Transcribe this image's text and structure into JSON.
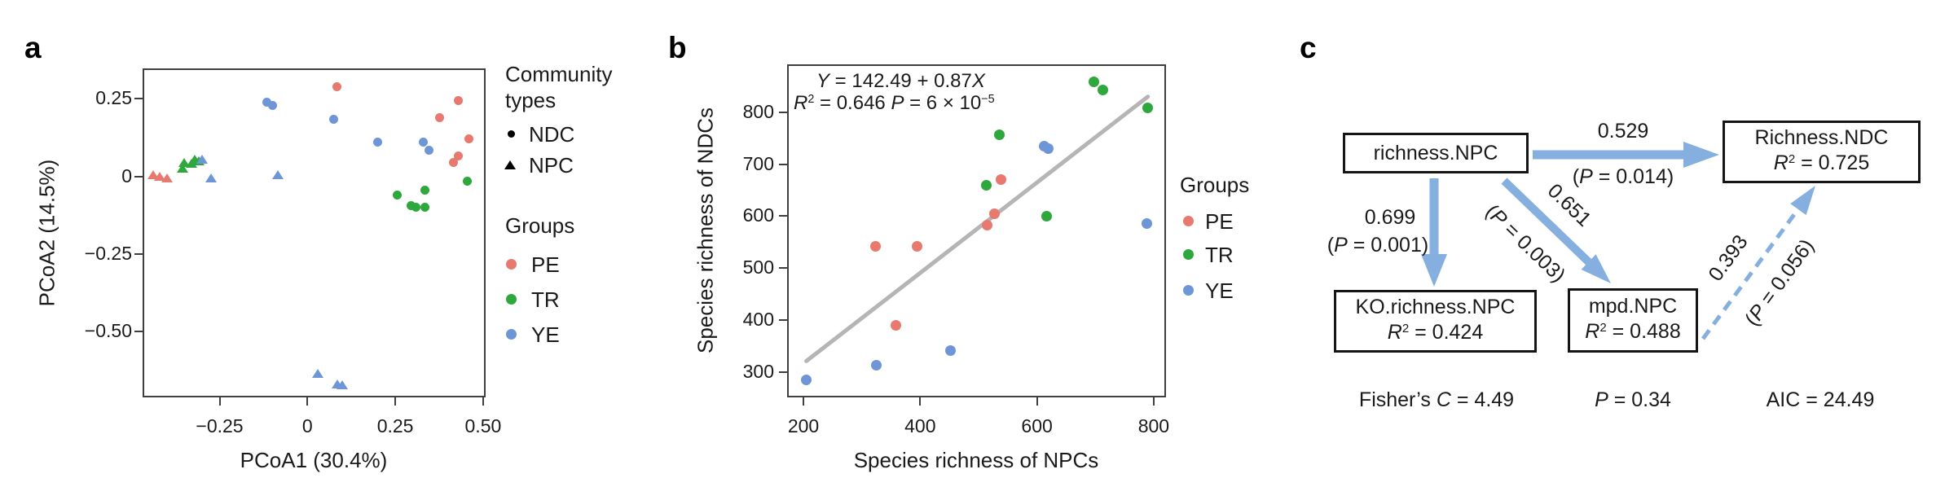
{
  "colors": {
    "pe": "#e8796f",
    "tr": "#2ea83c",
    "ye": "#6e96d6",
    "marker_black": "#000000",
    "arrow_blue": "#85afdf",
    "regression_gray": "#b5b5b5",
    "axis_gray": "#3f3f3f",
    "text_black": "#1a1a1a"
  },
  "panel_a": {
    "label": "a",
    "xlabel": "PCoA1 (30.4%)",
    "ylabel": "PCoA2 (14.5%)",
    "legend": {
      "community_title_line1": "Community",
      "community_title_line2": "types",
      "ndc": "NDC",
      "npc": "NPC",
      "groups_title": "Groups",
      "pe": "PE",
      "tr": "TR",
      "ye": "YE"
    }
  },
  "panel_b": {
    "label": "b",
    "xlabel": "Species richness of NPCs",
    "ylabel": "Species richness of NDCs",
    "annotation": {
      "y_var": "Y",
      "line1_mid": " = 142.49 + 0.87",
      "x_var": "X",
      "r_var": "R",
      "r_sup": "2",
      "line2_mid": " = 0.646 ",
      "p_var": "P",
      "line2_tail": " = 6 × 10",
      "line2_exp": "−5"
    },
    "legend": {
      "title": "Groups",
      "pe": "PE",
      "tr": "TR",
      "ye": "YE"
    }
  },
  "panel_c": {
    "label": "c",
    "nodes": {
      "richness_npc": {
        "label": "richness.NPC"
      },
      "richness_ndc": {
        "label": "Richness.NDC",
        "r": "R",
        "sup": "2",
        "val": " = 0.725"
      },
      "ko_richness_npc": {
        "label": "KO.richness.NPC",
        "r": "R",
        "sup": "2",
        "val": " = 0.424"
      },
      "mpd_npc": {
        "label": "mpd.NPC",
        "r": "R",
        "sup": "2",
        "val": " = 0.488"
      }
    },
    "edges": {
      "npc_to_ndc": {
        "coef": "0.529",
        "p_pre": "(",
        "p_var": "P",
        "p_post": " = 0.014)"
      },
      "npc_to_ko": {
        "coef": "0.699",
        "p_pre": "(",
        "p_var": "P",
        "p_post": " = 0.001)"
      },
      "npc_to_mpd": {
        "coef": "0.651",
        "p_pre": "(",
        "p_var": "P",
        "p_post": " = 0.003)"
      },
      "mpd_to_ndc": {
        "coef": "0.393",
        "p_pre": "(",
        "p_var": "P",
        "p_post": " = 0.056)"
      }
    },
    "stats": {
      "fisher_pre": "Fisher’s ",
      "fisher_var": "C",
      "fisher_post": " = 4.49",
      "p_var": "P",
      "p_post": " = 0.34",
      "aic": "AIC = 24.49"
    }
  },
  "chart_data": [
    {
      "id": "a",
      "type": "scatter",
      "xlabel": "PCoA1 (30.4%)",
      "ylabel": "PCoA2 (14.5%)",
      "xlim": [
        -0.47,
        0.51
      ],
      "ylim": [
        -0.71,
        0.35
      ],
      "grid": false,
      "legend_position": "right",
      "x_ticks": [
        {
          "v": -0.25,
          "label": "−0.25"
        },
        {
          "v": 0,
          "label": "0"
        },
        {
          "v": 0.25,
          "label": "0.25"
        },
        {
          "v": 0.5,
          "label": "0.50"
        }
      ],
      "y_ticks": [
        {
          "v": 0.25,
          "label": "0.25"
        },
        {
          "v": 0,
          "label": "0"
        },
        {
          "v": -0.25,
          "label": "−0.25"
        },
        {
          "v": -0.5,
          "label": "−0.50"
        }
      ],
      "legend": {
        "community_types": [
          "NDC",
          "NPC"
        ],
        "groups": [
          "PE",
          "TR",
          "YE"
        ]
      },
      "series": [
        {
          "name": "PE-NDC",
          "group": "PE",
          "community": "NDC",
          "marker": "circle",
          "color": "#e8796f",
          "points": [
            [
              0.085,
              0.29
            ],
            [
              0.43,
              0.245
            ],
            [
              0.375,
              0.19
            ],
            [
              0.46,
              0.12
            ],
            [
              0.43,
              0.065
            ],
            [
              0.415,
              0.045
            ]
          ]
        },
        {
          "name": "TR-NDC",
          "group": "TR",
          "community": "NDC",
          "marker": "circle",
          "color": "#2ea83c",
          "points": [
            [
              0.255,
              -0.06
            ],
            [
              0.295,
              -0.095
            ],
            [
              0.31,
              -0.1
            ],
            [
              0.335,
              -0.1
            ],
            [
              0.335,
              -0.045
            ],
            [
              0.455,
              -0.015
            ]
          ]
        },
        {
          "name": "YE-NDC",
          "group": "YE",
          "community": "NDC",
          "marker": "circle",
          "color": "#6e96d6",
          "points": [
            [
              -0.115,
              0.24
            ],
            [
              -0.1,
              0.23
            ],
            [
              0.075,
              0.185
            ],
            [
              0.2,
              0.11
            ],
            [
              0.33,
              0.11
            ],
            [
              0.345,
              0.085
            ]
          ]
        },
        {
          "name": "PE-NPC",
          "group": "PE",
          "community": "NPC",
          "marker": "triangle",
          "color": "#e8796f",
          "points": [
            [
              -0.44,
              0.005
            ],
            [
              -0.42,
              0
            ],
            [
              -0.4,
              -0.005
            ]
          ]
        },
        {
          "name": "TR-NPC",
          "group": "TR",
          "community": "NPC",
          "marker": "triangle",
          "color": "#2ea83c",
          "points": [
            [
              -0.355,
              0.025
            ],
            [
              -0.35,
              0.045
            ],
            [
              -0.33,
              0.04
            ],
            [
              -0.32,
              0.055
            ],
            [
              -0.31,
              0.05
            ]
          ]
        },
        {
          "name": "YE-NPC",
          "group": "YE",
          "community": "NPC",
          "marker": "triangle",
          "color": "#6e96d6",
          "points": [
            [
              -0.3,
              0.055
            ],
            [
              -0.275,
              -0.005
            ],
            [
              -0.085,
              0.005
            ],
            [
              0.03,
              -0.635
            ],
            [
              0.085,
              -0.67
            ],
            [
              0.1,
              -0.672
            ]
          ]
        }
      ]
    },
    {
      "id": "b",
      "type": "scatter",
      "xlabel": "Species richness of NPCs",
      "ylabel": "Species richness of NDCs",
      "xlim": [
        172,
        822
      ],
      "ylim": [
        251,
        892
      ],
      "grid": false,
      "legend_position": "right",
      "annotation_lines": [
        "Y = 142.49 + 0.87X",
        "R² = 0.646 P = 6 × 10⁻⁵"
      ],
      "regression": {
        "intercept": 142.49,
        "slope": 0.87,
        "x_start": 205,
        "x_end": 790,
        "r2": 0.646,
        "p_value": 6e-05
      },
      "x_ticks": [
        {
          "v": 200,
          "label": "200"
        },
        {
          "v": 400,
          "label": "400"
        },
        {
          "v": 600,
          "label": "600"
        },
        {
          "v": 800,
          "label": "800"
        }
      ],
      "y_ticks": [
        {
          "v": 800,
          "label": "800"
        },
        {
          "v": 700,
          "label": "700"
        },
        {
          "v": 600,
          "label": "600"
        },
        {
          "v": 500,
          "label": "500"
        },
        {
          "v": 400,
          "label": "400"
        },
        {
          "v": 300,
          "label": "300"
        }
      ],
      "legend": {
        "title": "Groups",
        "groups": [
          "PE",
          "TR",
          "YE"
        ]
      },
      "series": [
        {
          "name": "PE",
          "marker": "circle",
          "color": "#e8796f",
          "points": [
            [
              323,
              541
            ],
            [
              394,
              541
            ],
            [
              358,
              390
            ],
            [
              539,
              670
            ],
            [
              527,
              604
            ],
            [
              515,
              582
            ]
          ]
        },
        {
          "name": "TR",
          "marker": "circle",
          "color": "#2ea83c",
          "points": [
            [
              513,
              660
            ],
            [
              536,
              757
            ],
            [
              617,
              600
            ],
            [
              697,
              858
            ],
            [
              713,
              843
            ],
            [
              790,
              808
            ]
          ]
        },
        {
          "name": "YE",
          "marker": "circle",
          "color": "#6e96d6",
          "points": [
            [
              205,
              285
            ],
            [
              325,
              313
            ],
            [
              452,
              341
            ],
            [
              612,
              735
            ],
            [
              619,
              729
            ],
            [
              788,
              585
            ]
          ]
        }
      ]
    },
    {
      "id": "c",
      "type": "diagram",
      "nodes": [
        {
          "id": "richness.NPC",
          "r2": null
        },
        {
          "id": "Richness.NDC",
          "r2": 0.725
        },
        {
          "id": "KO.richness.NPC",
          "r2": 0.424
        },
        {
          "id": "mpd.NPC",
          "r2": 0.488
        }
      ],
      "edges": [
        {
          "from": "richness.NPC",
          "to": "Richness.NDC",
          "coef": 0.529,
          "p": 0.014,
          "style": "solid"
        },
        {
          "from": "richness.NPC",
          "to": "KO.richness.NPC",
          "coef": 0.699,
          "p": 0.001,
          "style": "solid"
        },
        {
          "from": "richness.NPC",
          "to": "mpd.NPC",
          "coef": 0.651,
          "p": 0.003,
          "style": "solid"
        },
        {
          "from": "mpd.NPC",
          "to": "Richness.NDC",
          "coef": 0.393,
          "p": 0.056,
          "style": "dashed"
        }
      ],
      "stats": {
        "fishers_c": 4.49,
        "p": 0.34,
        "aic": 24.49
      }
    }
  ]
}
